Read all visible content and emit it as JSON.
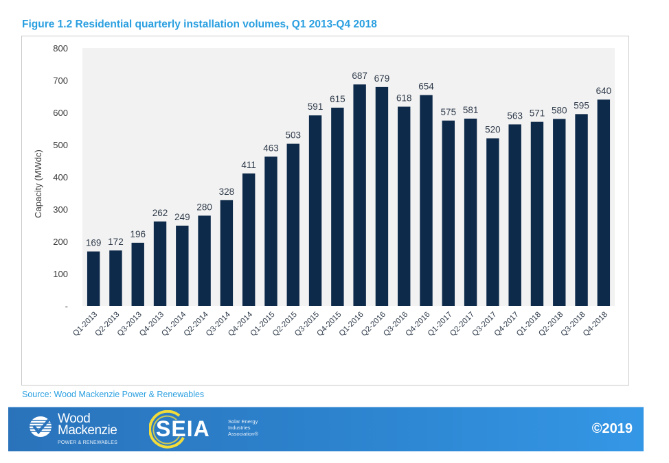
{
  "figure": {
    "title": "Figure 1.2 Residential quarterly installation volumes, Q1 2013-Q4 2018",
    "source": "Source: Wood Mackenzie Power & Renewables"
  },
  "footer": {
    "wm_line1": "Wood",
    "wm_line2": "Mackenzie",
    "wm_sub": "POWER & RENEWABLES",
    "seia_word": "SEIA",
    "seia_sub_1": "Solar Energy",
    "seia_sub_2": "Industries",
    "seia_sub_3": "Association®",
    "copyright": "©2019",
    "colors": {
      "banner": "#2d84cf",
      "seia_ring": "#f2dc3a"
    }
  },
  "chart_data": {
    "type": "bar",
    "title": "Figure 1.2 Residential quarterly installation volumes, Q1 2013-Q4 2018",
    "xlabel": "",
    "ylabel": "Capacity (MWdc)",
    "ylim": [
      0,
      800
    ],
    "yticks": [
      0,
      100,
      200,
      300,
      400,
      500,
      600,
      700,
      800
    ],
    "ytick_labels": [
      "-",
      "100",
      "200",
      "300",
      "400",
      "500",
      "600",
      "700",
      "800"
    ],
    "grid": false,
    "legend": "none",
    "bar_color": "#0e2a4a",
    "plot_bg": "#f2f2f2",
    "categories": [
      "Q1-2013",
      "Q2-2013",
      "Q3-2013",
      "Q4-2013",
      "Q1-2014",
      "Q2-2014",
      "Q3-2014",
      "Q4-2014",
      "Q1-2015",
      "Q2-2015",
      "Q3-2015",
      "Q4-2015",
      "Q1-2016",
      "Q2-2016",
      "Q3-2016",
      "Q4-2016",
      "Q1-2017",
      "Q2-2017",
      "Q3-2017",
      "Q4-2017",
      "Q1-2018",
      "Q2-2018",
      "Q3-2018",
      "Q4-2018"
    ],
    "values": [
      169,
      172,
      196,
      262,
      249,
      280,
      328,
      411,
      463,
      503,
      591,
      615,
      687,
      679,
      618,
      654,
      575,
      581,
      520,
      563,
      571,
      580,
      595,
      640
    ]
  }
}
